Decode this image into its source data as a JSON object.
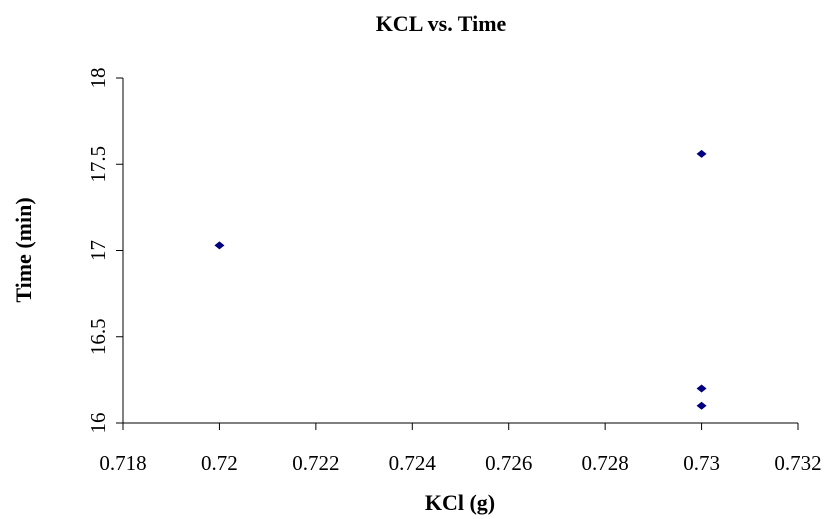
{
  "chart_data": {
    "type": "scatter",
    "title": "KCL vs. Time",
    "x_label": "KCl (g)",
    "y_label": "Time (min)",
    "series": [
      {
        "color": "#000080",
        "x": [
          0.72,
          0.73,
          0.73,
          0.73
        ],
        "values": [
          17.03,
          17.56,
          16.2,
          16.1
        ]
      }
    ],
    "xlim": [
      0.718,
      0.732
    ],
    "xticks": [
      0.718,
      0.72,
      0.722,
      0.724,
      0.726,
      0.728,
      0.73,
      0.732
    ],
    "ylim": [
      16,
      18
    ],
    "yticks": [
      16,
      16.5,
      17,
      17.5,
      18
    ],
    "grid": false
  }
}
